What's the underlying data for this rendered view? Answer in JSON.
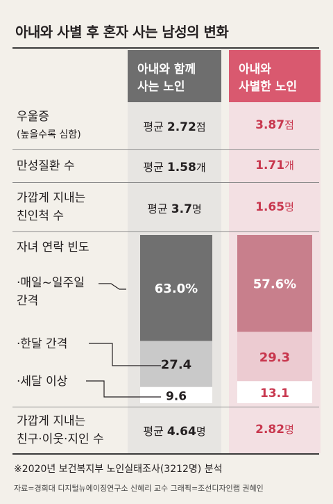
{
  "title": "아내와 사별 후 혼자 사는 남성의 변화",
  "columns": {
    "with_wife": {
      "line1": "아내와 함께",
      "line2": "사는 노인",
      "color": "#6e6e6e"
    },
    "widowed": {
      "line1": "아내와",
      "line2": "사별한 노인",
      "color": "#d9596f"
    }
  },
  "rows": {
    "depression": {
      "label": "우울증",
      "sublabel": "(높을수록 심함)",
      "with_prefix": "평균 ",
      "with_value": "2.72",
      "with_unit": "점",
      "wid_value": "3.87",
      "wid_unit": "점"
    },
    "chronic": {
      "label": "만성질환 수",
      "with_prefix": "평균 ",
      "with_value": "1.58",
      "with_unit": "개",
      "wid_value": "1.71",
      "wid_unit": "개"
    },
    "relatives": {
      "line1": "가깝게 지내는",
      "line2": "친인척 수",
      "with_prefix": "평균 ",
      "with_value": "3.7",
      "with_unit": "명",
      "wid_value": "1.65",
      "wid_unit": "명"
    },
    "friends": {
      "line1": "가깝게 지내는",
      "line2": "친구·이웃·지인 수",
      "with_prefix": "평균 ",
      "with_value": "4.64",
      "with_unit": "명",
      "wid_value": "2.82",
      "wid_unit": "명"
    }
  },
  "contact": {
    "label": "자녀 연락 빈도",
    "weekly_line1": "·매일~일주일",
    "weekly_line2": "간격",
    "monthly": "·한달 간격",
    "rare": "·세달 이상"
  },
  "chart_data": {
    "type": "bar",
    "title": "자녀 연락 빈도",
    "categories": [
      "아내와 함께 사는 노인",
      "아내와 사별한 노인"
    ],
    "series": [
      {
        "name": "매일~일주일 간격",
        "values": [
          63.0,
          57.6
        ],
        "labels": [
          "63.0%",
          "57.6%"
        ]
      },
      {
        "name": "한달 간격",
        "values": [
          27.4,
          29.3
        ],
        "labels": [
          "27.4",
          "29.3"
        ]
      },
      {
        "name": "세달 이상",
        "values": [
          9.6,
          13.1
        ],
        "labels": [
          "9.6",
          "13.1"
        ]
      }
    ],
    "colors": {
      "with_wife": [
        "#707070",
        "#c9c9c9",
        "#ffffff"
      ],
      "widowed": [
        "#c87f8c",
        "#eccbd1",
        "#ffffff"
      ]
    }
  },
  "footnote": "※2020년 보건복지부 노인실태조사(3212명) 분석",
  "credit": "자료=경희대 디지털뉴에이징연구소 신혜리 교수   그래픽=조선디자인랩 권혜인"
}
